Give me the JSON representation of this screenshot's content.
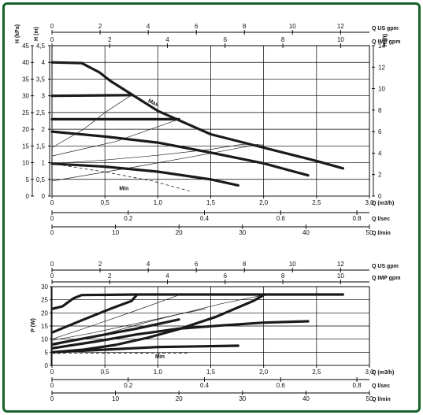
{
  "colors": {
    "frame": "#17612a",
    "curve": "#1a1a1a",
    "background": "#ffffff"
  },
  "chart_data": [
    {
      "type": "line",
      "title": "",
      "xlabel": "Q (m3/h)",
      "xlim": [
        0,
        3.0
      ],
      "x_ticks": [
        0,
        0.5,
        1.0,
        1.5,
        2.0,
        2.5,
        3.0
      ],
      "x_tick_labels": [
        "0",
        "0,5",
        "1,0",
        "1,5",
        "2,0",
        "2,5",
        "3,0"
      ],
      "ylabel_left_kpa": "H (kPa)",
      "ylim_kpa": [
        0,
        45
      ],
      "y_ticks_kpa": [
        "0",
        "5",
        "10",
        "15",
        "20",
        "25",
        "30",
        "35",
        "40",
        "45"
      ],
      "ylabel_left_m": "H (m)",
      "ylim_m": [
        0,
        4.5
      ],
      "y_ticks_m": [
        "0",
        "0,5",
        "1",
        "1,5",
        "2",
        "2,5",
        "3",
        "3,5",
        "4",
        "4,5"
      ],
      "ylabel_right_ft": "H (ft)",
      "ylim_ft": [
        0,
        14
      ],
      "y_ticks_ft": [
        "0",
        "2",
        "4",
        "6",
        "8",
        "10",
        "12",
        "14"
      ],
      "top_axes": [
        {
          "label": "Q US gpm",
          "max": 13.2,
          "ticks": [
            "0",
            "2",
            "4",
            "6",
            "8",
            "10",
            "12"
          ]
        },
        {
          "label": "Q IMP gpm",
          "max": 11.0,
          "ticks": [
            "0",
            "2",
            "4",
            "6",
            "8",
            "10"
          ]
        }
      ],
      "bottom_axes": [
        {
          "label": "Q l/sec",
          "max": 0.833,
          "ticks": [
            "0",
            "0.2",
            "0.4",
            "0.6",
            "0.8"
          ]
        },
        {
          "label": "Q l/min",
          "max": 50,
          "ticks": [
            "0",
            "10",
            "20",
            "30",
            "40",
            "50"
          ]
        }
      ],
      "annotations": [
        "Max",
        "Min"
      ],
      "series": [
        {
          "style": "thick",
          "points": [
            [
              0,
              4.0
            ],
            [
              0.28,
              3.98
            ],
            [
              0.45,
              3.7
            ],
            [
              0.55,
              3.45
            ],
            [
              1.0,
              2.55
            ],
            [
              1.5,
              1.85
            ],
            [
              2.0,
              1.45
            ],
            [
              2.5,
              1.05
            ],
            [
              2.75,
              0.83
            ]
          ]
        },
        {
          "style": "thick",
          "points": [
            [
              0,
              3.0
            ],
            [
              0.75,
              3.02
            ]
          ]
        },
        {
          "style": "thick",
          "points": [
            [
              0,
              2.3
            ],
            [
              1.2,
              2.3
            ]
          ]
        },
        {
          "style": "thick",
          "points": [
            [
              0,
              1.93
            ],
            [
              0.5,
              1.78
            ],
            [
              1.0,
              1.6
            ],
            [
              1.5,
              1.3
            ],
            [
              2.0,
              0.98
            ],
            [
              2.42,
              0.62
            ]
          ]
        },
        {
          "style": "thick",
          "points": [
            [
              0,
              0.97
            ],
            [
              0.5,
              0.88
            ],
            [
              1.0,
              0.73
            ],
            [
              1.5,
              0.5
            ],
            [
              1.76,
              0.32
            ]
          ]
        },
        {
          "style": "thin",
          "points": [
            [
              0,
              1.45
            ],
            [
              0.3,
              2.0
            ],
            [
              0.5,
              2.5
            ],
            [
              0.75,
              3.02
            ]
          ]
        },
        {
          "style": "thin",
          "points": [
            [
              0,
              1.2
            ],
            [
              0.6,
              1.63
            ],
            [
              1.2,
              2.3
            ]
          ]
        },
        {
          "style": "thin",
          "points": [
            [
              0,
              0.97
            ],
            [
              0.5,
              1.08
            ],
            [
              1.0,
              1.22
            ],
            [
              1.5,
              1.4
            ],
            [
              1.8,
              1.55
            ],
            [
              2.0,
              1.53
            ]
          ]
        },
        {
          "style": "thin",
          "points": [
            [
              0,
              0.45
            ],
            [
              0.8,
              0.88
            ],
            [
              1.5,
              1.28
            ],
            [
              1.95,
              1.55
            ]
          ]
        },
        {
          "style": "dash",
          "points": [
            [
              0,
              0.97
            ],
            [
              0.5,
              0.72
            ],
            [
              0.95,
              0.45
            ],
            [
              1.3,
              0.15
            ]
          ]
        }
      ]
    },
    {
      "type": "line",
      "title": "",
      "xlabel": "Q (m3/h)",
      "xlim": [
        0,
        3.0
      ],
      "x_ticks": [
        0,
        0.5,
        1.0,
        1.5,
        2.0,
        2.5,
        3.0
      ],
      "x_tick_labels": [
        "0",
        "0,5",
        "1,0",
        "1,5",
        "2,0",
        "2,5",
        "3,0"
      ],
      "ylabel": "P (W)",
      "ylim": [
        0,
        30
      ],
      "y_ticks": [
        "0",
        "5",
        "10",
        "15",
        "20",
        "25",
        "30"
      ],
      "top_axes": [
        {
          "label": "Q US gpm",
          "max": 13.2,
          "ticks": [
            "0",
            "2",
            "4",
            "6",
            "8",
            "10",
            "12"
          ]
        },
        {
          "label": "Q IMP gpm",
          "max": 11.0,
          "ticks": [
            "0",
            "2",
            "4",
            "6",
            "8",
            "10"
          ]
        }
      ],
      "bottom_axes": [
        {
          "label": "Q l/sec",
          "max": 0.833,
          "ticks": [
            "0",
            "0.2",
            "0.4",
            "0.6",
            "0.8"
          ]
        },
        {
          "label": "Q l/min",
          "max": 50,
          "ticks": [
            "0",
            "10",
            "20",
            "30",
            "40",
            "50"
          ]
        }
      ],
      "annotations": [
        "Min"
      ],
      "series": [
        {
          "style": "thick",
          "points": [
            [
              0,
              21.5
            ],
            [
              0.1,
              22.5
            ],
            [
              0.2,
              25.5
            ],
            [
              0.28,
              26.8
            ],
            [
              0.8,
              27.0
            ],
            [
              2.75,
              27.0
            ]
          ]
        },
        {
          "style": "thick",
          "points": [
            [
              0,
              12.5
            ],
            [
              0.3,
              17.5
            ],
            [
              0.55,
              21.5
            ],
            [
              0.75,
              24.5
            ],
            [
              0.8,
              26.8
            ]
          ]
        },
        {
          "style": "thick",
          "points": [
            [
              0,
              8.0
            ],
            [
              0.4,
              11.0
            ],
            [
              0.8,
              14.0
            ],
            [
              1.2,
              17.5
            ]
          ]
        },
        {
          "style": "thick",
          "points": [
            [
              0,
              5.0
            ],
            [
              0.3,
              6.0
            ],
            [
              0.6,
              7.8
            ],
            [
              0.9,
              10.5
            ],
            [
              1.2,
              13.8
            ],
            [
              1.55,
              18.5
            ],
            [
              1.9,
              24.5
            ],
            [
              2.0,
              26.8
            ]
          ]
        },
        {
          "style": "thick",
          "points": [
            [
              0,
              6.5
            ],
            [
              0.4,
              9.0
            ],
            [
              0.8,
              11.8
            ],
            [
              1.2,
              14.0
            ],
            [
              1.6,
              15.2
            ],
            [
              2.0,
              16.3
            ],
            [
              2.42,
              16.8
            ]
          ]
        },
        {
          "style": "thick",
          "points": [
            [
              0,
              5.0
            ],
            [
              0.5,
              6.0
            ],
            [
              1.0,
              7.0
            ],
            [
              1.76,
              7.5
            ]
          ]
        },
        {
          "style": "thin",
          "points": [
            [
              0,
              10.0
            ],
            [
              0.3,
              14.0
            ],
            [
              0.55,
              17.5
            ],
            [
              0.8,
              21.0
            ],
            [
              1.2,
              26.8
            ]
          ]
        },
        {
          "style": "thin",
          "points": [
            [
              0,
              7.5
            ],
            [
              0.5,
              12.0
            ],
            [
              0.9,
              16.5
            ],
            [
              1.3,
              20.5
            ],
            [
              1.6,
              23.5
            ],
            [
              2.0,
              26.8
            ]
          ]
        },
        {
          "style": "thin",
          "points": [
            [
              0,
              9.5
            ],
            [
              0.4,
              12.5
            ],
            [
              0.8,
              16.0
            ],
            [
              1.2,
              19.5
            ],
            [
              1.45,
              21.5
            ]
          ]
        },
        {
          "style": "dash",
          "points": [
            [
              0,
              4.6
            ],
            [
              1.3,
              4.7
            ]
          ]
        }
      ]
    }
  ]
}
